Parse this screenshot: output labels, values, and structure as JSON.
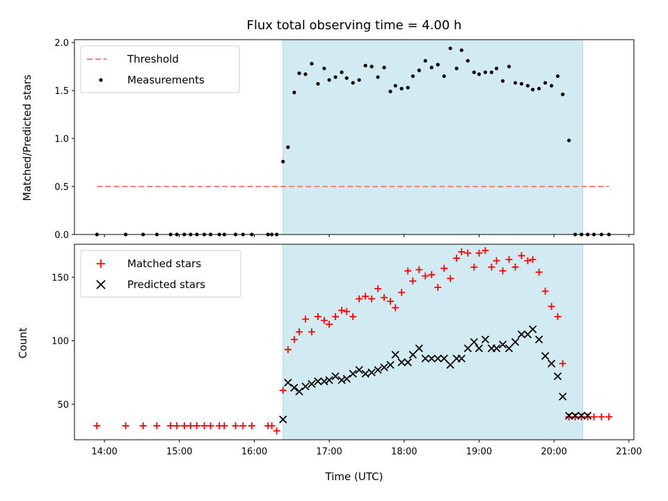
{
  "chart_data": [
    {
      "type": "scatter",
      "title": "Flux total observing time = 4.00 h",
      "xlabel": "",
      "ylabel": "Matched/Predicted stars",
      "xlim": [
        "13:36",
        "21:04"
      ],
      "ylim": [
        0,
        2.03
      ],
      "yticks": [
        "0.0",
        "0.5",
        "1.0",
        "1.5",
        "2.0"
      ],
      "shaded_interval": [
        "16:23",
        "20:23"
      ],
      "shade_color": "#add8e6",
      "legend": {
        "position": "top-left",
        "entries": [
          "Threshold",
          "Measurements"
        ]
      },
      "threshold": {
        "name": "Threshold",
        "y": 0.5,
        "x_range": [
          "13:54",
          "20:44"
        ],
        "color": "#ff7f7f"
      },
      "series": [
        {
          "name": "Measurements",
          "color": "#000000",
          "x": [
            "13:54",
            "14:17",
            "14:31",
            "14:42",
            "14:53",
            "14:58",
            "15:04",
            "15:09",
            "15:14",
            "15:20",
            "15:25",
            "15:32",
            "15:36",
            "15:45",
            "15:51",
            "15:58",
            "16:11",
            "16:14",
            "16:18",
            "16:23",
            "16:27",
            "16:32",
            "16:36",
            "16:41",
            "16:46",
            "16:51",
            "16:56",
            "17:00",
            "17:05",
            "17:10",
            "17:14",
            "17:19",
            "17:24",
            "17:29",
            "17:34",
            "17:39",
            "17:44",
            "17:49",
            "17:53",
            "17:58",
            "18:03",
            "18:07",
            "18:12",
            "18:17",
            "18:22",
            "18:27",
            "18:32",
            "18:37",
            "18:42",
            "18:46",
            "18:51",
            "18:56",
            "19:00",
            "19:05",
            "19:10",
            "19:14",
            "19:19",
            "19:24",
            "19:29",
            "19:34",
            "19:39",
            "19:43",
            "19:48",
            "19:53",
            "19:58",
            "20:03",
            "20:07",
            "20:12",
            "20:17",
            "20:22",
            "20:27",
            "20:32",
            "20:38",
            "20:44"
          ],
          "y": [
            0.0,
            0.0,
            0.0,
            0.0,
            0.0,
            0.0,
            0.0,
            0.0,
            0.0,
            0.0,
            0.0,
            0.0,
            0.0,
            0.0,
            0.0,
            0.0,
            0.0,
            0.0,
            0.0,
            0.76,
            0.91,
            1.48,
            1.68,
            1.67,
            1.78,
            1.57,
            1.73,
            1.61,
            1.64,
            1.69,
            1.63,
            1.58,
            1.61,
            1.76,
            1.75,
            1.64,
            1.74,
            1.49,
            1.55,
            1.52,
            1.53,
            1.65,
            1.71,
            1.81,
            1.74,
            1.77,
            1.65,
            1.94,
            1.73,
            1.92,
            1.81,
            1.69,
            1.67,
            1.69,
            1.69,
            1.73,
            1.6,
            1.75,
            1.58,
            1.57,
            1.55,
            1.51,
            1.52,
            1.58,
            1.55,
            1.65,
            1.46,
            0.98,
            0.0,
            0.0,
            0.0,
            0.0,
            0.0,
            0.0
          ]
        }
      ]
    },
    {
      "type": "scatter",
      "title": "",
      "xlabel": "Time (UTC)",
      "ylabel": "Count",
      "xlim": [
        "13:36",
        "21:04"
      ],
      "ylim": [
        22,
        176
      ],
      "xticks": [
        "14:00",
        "15:00",
        "16:00",
        "17:00",
        "18:00",
        "19:00",
        "20:00",
        "21:00"
      ],
      "yticks": [
        "50",
        "100",
        "150"
      ],
      "shaded_interval": [
        "16:23",
        "20:23"
      ],
      "shade_color": "#add8e6",
      "legend": {
        "position": "top-left",
        "entries": [
          "Matched stars",
          "Predicted stars"
        ]
      },
      "series": [
        {
          "name": "Matched stars",
          "marker": "+",
          "color": "#ff0000",
          "x": [
            "13:54",
            "14:17",
            "14:31",
            "14:42",
            "14:53",
            "14:58",
            "15:04",
            "15:09",
            "15:14",
            "15:20",
            "15:25",
            "15:32",
            "15:36",
            "15:45",
            "15:51",
            "15:58",
            "16:11",
            "16:14",
            "16:18",
            "16:23",
            "16:27",
            "16:32",
            "16:36",
            "16:41",
            "16:46",
            "16:51",
            "16:56",
            "17:00",
            "17:05",
            "17:10",
            "17:14",
            "17:19",
            "17:24",
            "17:29",
            "17:34",
            "17:39",
            "17:44",
            "17:49",
            "17:53",
            "17:58",
            "18:03",
            "18:07",
            "18:12",
            "18:17",
            "18:22",
            "18:27",
            "18:32",
            "18:37",
            "18:42",
            "18:46",
            "18:51",
            "18:56",
            "19:00",
            "19:05",
            "19:10",
            "19:14",
            "19:19",
            "19:24",
            "19:29",
            "19:34",
            "19:39",
            "19:43",
            "19:48",
            "19:53",
            "19:58",
            "20:03",
            "20:07",
            "20:12",
            "20:17",
            "20:22",
            "20:27",
            "20:32",
            "20:38",
            "20:44"
          ],
          "y": [
            33,
            33,
            33,
            33,
            33,
            33,
            33,
            33,
            33,
            33,
            33,
            33,
            33,
            33,
            33,
            33,
            33,
            33,
            29,
            61,
            93,
            101,
            107,
            117,
            107,
            119,
            116,
            113,
            119,
            124,
            123,
            119,
            133,
            135,
            133,
            141,
            134,
            131,
            126,
            138,
            155,
            147,
            156,
            151,
            152,
            142,
            157,
            149,
            165,
            170,
            169,
            158,
            169,
            171,
            158,
            163,
            155,
            164,
            158,
            167,
            163,
            164,
            154,
            139,
            127,
            119,
            82,
            40,
            40,
            40,
            40,
            40,
            40,
            40
          ]
        },
        {
          "name": "Predicted stars",
          "marker": "x",
          "color": "#000000",
          "x": [
            "16:23",
            "16:27",
            "16:32",
            "16:36",
            "16:41",
            "16:46",
            "16:51",
            "16:56",
            "17:00",
            "17:05",
            "17:10",
            "17:14",
            "17:19",
            "17:24",
            "17:29",
            "17:34",
            "17:39",
            "17:44",
            "17:49",
            "17:53",
            "17:58",
            "18:03",
            "18:07",
            "18:12",
            "18:17",
            "18:22",
            "18:27",
            "18:32",
            "18:37",
            "18:42",
            "18:46",
            "18:51",
            "18:56",
            "19:00",
            "19:05",
            "19:10",
            "19:14",
            "19:19",
            "19:24",
            "19:29",
            "19:34",
            "19:39",
            "19:43",
            "19:48",
            "19:53",
            "19:58",
            "20:03",
            "20:07",
            "20:12",
            "20:17",
            "20:22",
            "20:27"
          ],
          "y": [
            38,
            67,
            63,
            60,
            64,
            66,
            68,
            68,
            69,
            72,
            69,
            70,
            74,
            77,
            74,
            75,
            77,
            79,
            81,
            89,
            83,
            83,
            89,
            94,
            86,
            86,
            86,
            86,
            81,
            86,
            86,
            94,
            99,
            94,
            101,
            94,
            94,
            97,
            94,
            99,
            105,
            105,
            109,
            101,
            88,
            82,
            72,
            56,
            41,
            41,
            41,
            41
          ]
        }
      ]
    }
  ]
}
